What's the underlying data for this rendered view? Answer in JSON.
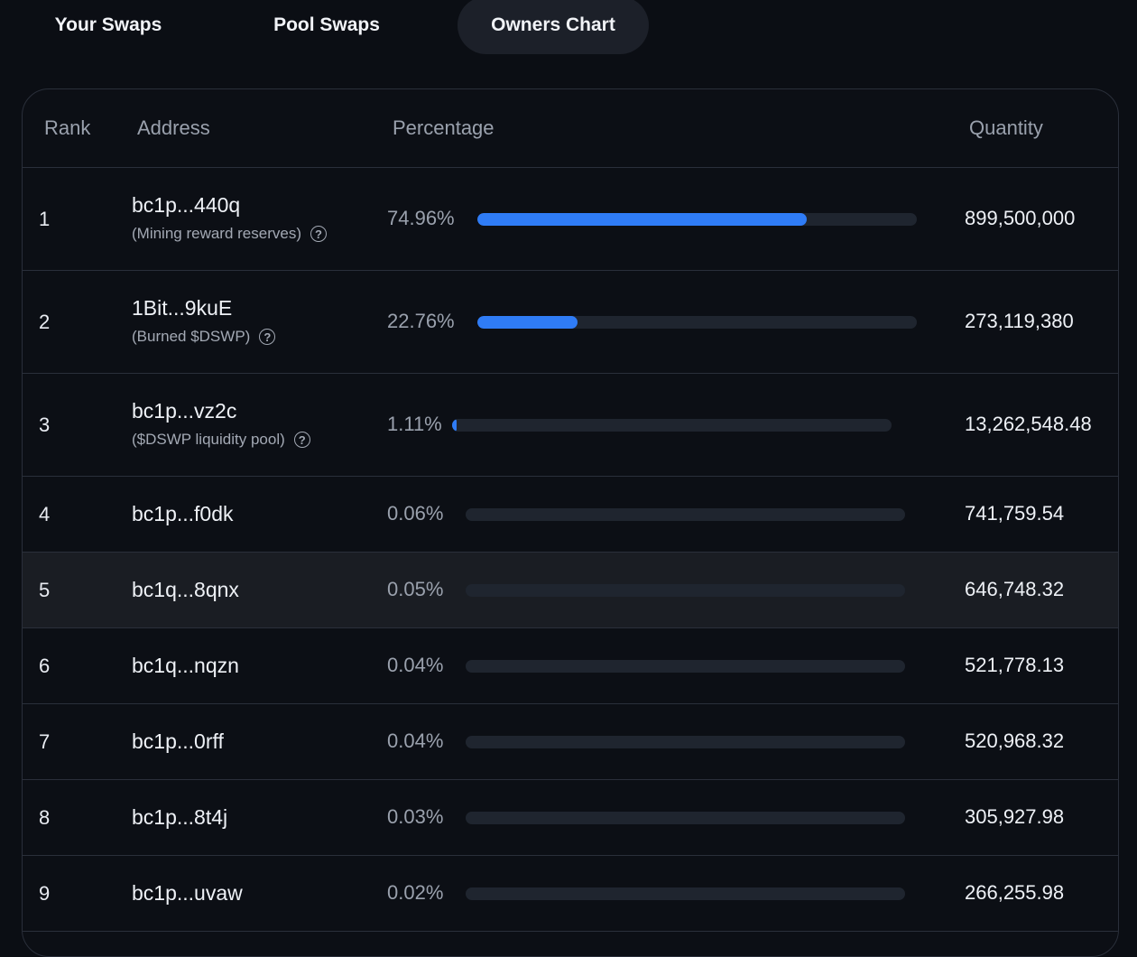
{
  "tabs": [
    {
      "label": "Your Swaps",
      "active": false
    },
    {
      "label": "Pool Swaps",
      "active": false
    },
    {
      "label": "Owners Chart",
      "active": true
    }
  ],
  "table": {
    "headers": {
      "rank": "Rank",
      "address": "Address",
      "percentage": "Percentage",
      "quantity": "Quantity"
    },
    "rows": [
      {
        "rank": "1",
        "address": "bc1p...440q",
        "note": "(Mining reward reserves)",
        "percentage": "74.96%",
        "fill": 0.7496,
        "quantity": "899,500,000"
      },
      {
        "rank": "2",
        "address": "1Bit...9kuE",
        "note": "(Burned $DSWP)",
        "percentage": "22.76%",
        "fill": 0.2276,
        "quantity": "273,119,380"
      },
      {
        "rank": "3",
        "address": "bc1p...vz2c",
        "note": "($DSWP liquidity pool)",
        "percentage": "1.11%",
        "fill": 0.0111,
        "quantity": "13,262,548.48"
      },
      {
        "rank": "4",
        "address": "bc1p...f0dk",
        "percentage": "0.06%",
        "fill": 0.0006,
        "quantity": "741,759.54"
      },
      {
        "rank": "5",
        "address": "bc1q...8qnx",
        "percentage": "0.05%",
        "fill": 0.0005,
        "quantity": "646,748.32"
      },
      {
        "rank": "6",
        "address": "bc1q...nqzn",
        "percentage": "0.04%",
        "fill": 0.0004,
        "quantity": "521,778.13"
      },
      {
        "rank": "7",
        "address": "bc1p...0rff",
        "percentage": "0.04%",
        "fill": 0.0004,
        "quantity": "520,968.32"
      },
      {
        "rank": "8",
        "address": "bc1p...8t4j",
        "percentage": "0.03%",
        "fill": 0.0003,
        "quantity": "305,927.98"
      },
      {
        "rank": "9",
        "address": "bc1p...uvaw",
        "percentage": "0.02%",
        "fill": 0.0002,
        "quantity": "266,255.98"
      }
    ]
  },
  "colors": {
    "bar_fill": "#2f7cf6",
    "bar_track": "#1f252f",
    "background": "#0b0e14"
  },
  "icons": {
    "note_help": "question-circle-icon"
  }
}
